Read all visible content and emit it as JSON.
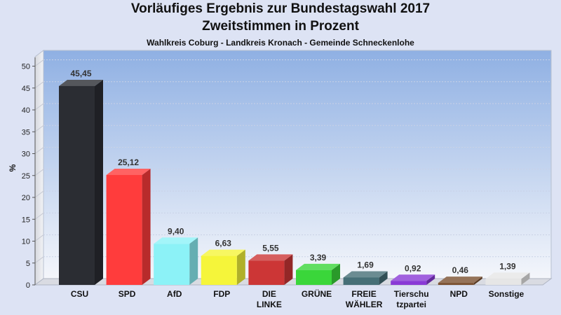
{
  "header": {
    "title_line1": "Vorläufiges Ergebnis zur Bundestagswahl 2017",
    "title_line2": "Zweitstimmen in Prozent",
    "subtitle": "Wahlkreis Coburg - Landkreis Kronach - Gemeinde Schneckenlohe"
  },
  "chart_data": {
    "type": "bar",
    "title": "Vorläufiges Ergebnis zur Bundestagswahl 2017 Zweitstimmen in Prozent",
    "subtitle": "Wahlkreis Coburg - Landkreis Kronach - Gemeinde Schneckenlohe",
    "ylabel": "%",
    "ylim": [
      0,
      52
    ],
    "yticks": [
      "0",
      "5",
      "10",
      "15",
      "20",
      "25",
      "30",
      "35",
      "40",
      "45",
      "50"
    ],
    "grid": true,
    "categories": [
      [
        "CSU"
      ],
      [
        "SPD"
      ],
      [
        "AfD"
      ],
      [
        "FDP"
      ],
      [
        "DIE",
        "LINKE"
      ],
      [
        "GRÜNE"
      ],
      [
        "FREIE",
        "WÄHLER"
      ],
      [
        "Tierschu",
        "tzpartei"
      ],
      [
        "NPD"
      ],
      [
        "Sonstige"
      ]
    ],
    "values": [
      45.45,
      25.12,
      9.4,
      6.63,
      5.55,
      3.39,
      1.69,
      0.92,
      0.46,
      1.39
    ],
    "value_labels": [
      "45,45",
      "25,12",
      "9,40",
      "6,63",
      "5,55",
      "3,39",
      "1,69",
      "0,92",
      "0,46",
      "1,39"
    ],
    "colors": [
      "#2b2d33",
      "#ff3c3c",
      "#8cf2f7",
      "#f5f53a",
      "#cc3636",
      "#3ad63a",
      "#466f77",
      "#8a3ad6",
      "#7a5030",
      "#e6e6e6"
    ]
  }
}
